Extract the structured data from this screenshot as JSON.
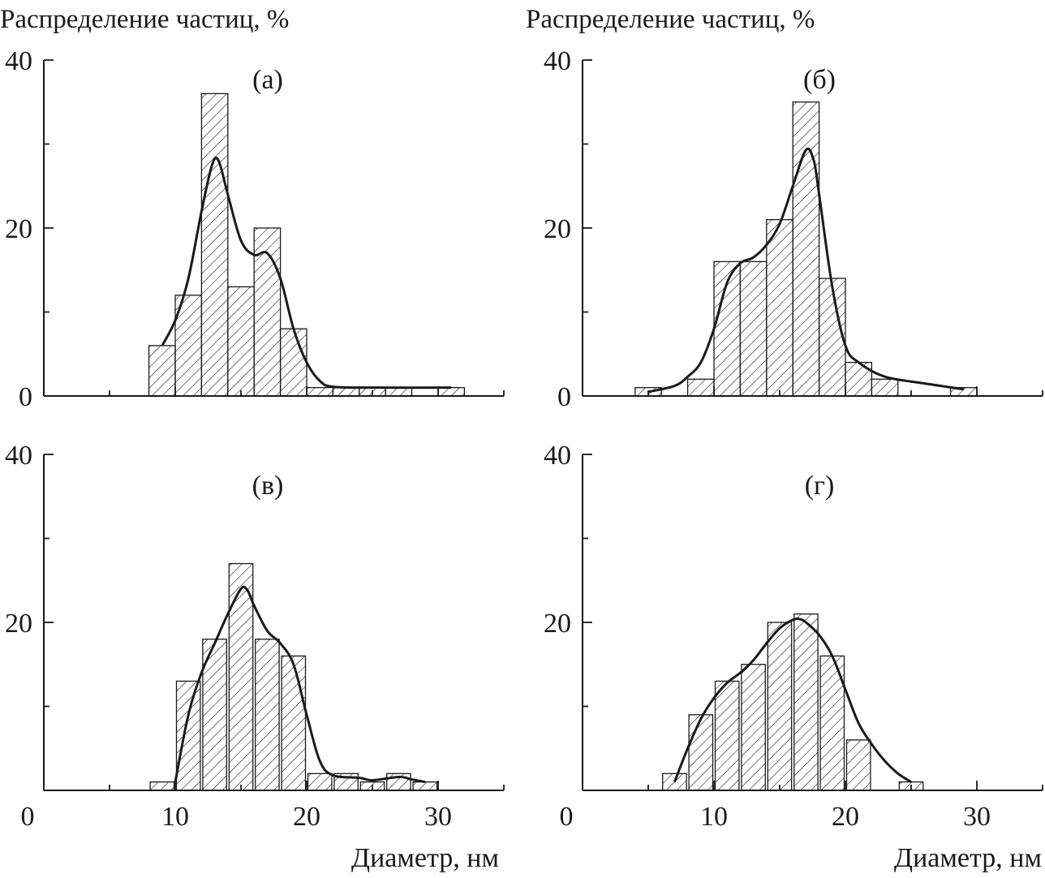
{
  "chart_data": [
    {
      "type": "bar",
      "panel_label": "(а)",
      "ylabel": "Распределение частиц, %",
      "xlabel": "",
      "xlim": [
        0,
        35
      ],
      "ylim": [
        0,
        40
      ],
      "y_ticks": [
        0,
        20,
        40
      ],
      "x_ticks": [],
      "bin_width": 2,
      "bars": {
        "x": [
          9,
          11,
          13,
          15,
          17,
          19,
          21,
          23,
          25,
          27,
          31
        ],
        "values": [
          6,
          12,
          36,
          13,
          20,
          8,
          1,
          1,
          1,
          1,
          1
        ]
      },
      "fit_curve": [
        [
          9,
          6
        ],
        [
          10,
          9
        ],
        [
          11,
          14
        ],
        [
          12,
          22
        ],
        [
          12.8,
          27.5
        ],
        [
          13.3,
          28
        ],
        [
          14,
          24
        ],
        [
          15,
          18.5
        ],
        [
          16,
          16.8
        ],
        [
          17,
          17
        ],
        [
          18,
          14
        ],
        [
          19,
          8
        ],
        [
          20,
          4
        ],
        [
          21,
          1.8
        ],
        [
          22,
          1.1
        ],
        [
          25,
          1
        ],
        [
          31,
          1
        ]
      ],
      "pattern": "diagonal-hatch"
    },
    {
      "type": "bar",
      "panel_label": "(б)",
      "ylabel": "Распределение частиц, %",
      "xlabel": "",
      "xlim": [
        0,
        35
      ],
      "ylim": [
        0,
        40
      ],
      "y_ticks": [
        0,
        20,
        40
      ],
      "x_ticks": [],
      "bin_width": 2,
      "bars": {
        "x": [
          5,
          9,
          11,
          13,
          15,
          17,
          19,
          21,
          23,
          29
        ],
        "values": [
          1,
          2,
          16,
          16,
          21,
          35,
          14,
          4,
          2,
          1
        ]
      },
      "fit_curve": [
        [
          5,
          0.5
        ],
        [
          7,
          1.2
        ],
        [
          8,
          2.3
        ],
        [
          9,
          4
        ],
        [
          10,
          8
        ],
        [
          11,
          13.5
        ],
        [
          12,
          15.8
        ],
        [
          13,
          16.5
        ],
        [
          14,
          18
        ],
        [
          15,
          20.5
        ],
        [
          16,
          25
        ],
        [
          17,
          29.3
        ],
        [
          17.6,
          28
        ],
        [
          18,
          24
        ],
        [
          19,
          13
        ],
        [
          20,
          6
        ],
        [
          21,
          4
        ],
        [
          23,
          2.3
        ],
        [
          26,
          1.5
        ],
        [
          29,
          0.8
        ]
      ],
      "pattern": "diagonal-hatch"
    },
    {
      "type": "bar",
      "panel_label": "(в)",
      "ylabel": "",
      "xlabel": "Диаметр, нм",
      "xlim": [
        0,
        35
      ],
      "ylim": [
        0,
        40
      ],
      "y_ticks": [
        0,
        20,
        40
      ],
      "x_ticks": [
        0,
        10,
        20,
        30
      ],
      "bin_width": 2,
      "bars": {
        "x": [
          9,
          11,
          13,
          15,
          17,
          19,
          21,
          23,
          25,
          27,
          29
        ],
        "values": [
          1,
          13,
          18,
          27,
          18,
          16,
          2,
          2,
          1,
          2,
          1
        ]
      },
      "fit_curve": [
        [
          10,
          1
        ],
        [
          11,
          9
        ],
        [
          12,
          14
        ],
        [
          13,
          17.5
        ],
        [
          14,
          21
        ],
        [
          15,
          24
        ],
        [
          15.5,
          23.8
        ],
        [
          16,
          22
        ],
        [
          17,
          19
        ],
        [
          18,
          17.5
        ],
        [
          19,
          15
        ],
        [
          20,
          9
        ],
        [
          21,
          3.5
        ],
        [
          22,
          1.8
        ],
        [
          24,
          1.5
        ],
        [
          25,
          1.2
        ],
        [
          27,
          1.6
        ],
        [
          28,
          1.3
        ],
        [
          29,
          1
        ]
      ],
      "pattern": "diagonal-hatch"
    },
    {
      "type": "bar",
      "panel_label": "(г)",
      "ylabel": "",
      "xlabel": "Диаметр, нм",
      "xlim": [
        0,
        35
      ],
      "ylim": [
        0,
        40
      ],
      "y_ticks": [
        0,
        20,
        40
      ],
      "x_ticks": [
        0,
        10,
        20,
        30
      ],
      "bin_width": 2,
      "bars": {
        "x": [
          7,
          9,
          11,
          13,
          15,
          17,
          19,
          21,
          25
        ],
        "values": [
          2,
          9,
          13,
          15,
          20,
          21,
          16,
          6,
          1
        ]
      },
      "fit_curve": [
        [
          7,
          1
        ],
        [
          8,
          5
        ],
        [
          9,
          8.5
        ],
        [
          10,
          11
        ],
        [
          11,
          12.8
        ],
        [
          12,
          14
        ],
        [
          13,
          15.5
        ],
        [
          14,
          17.5
        ],
        [
          15,
          19.3
        ],
        [
          16,
          20.3
        ],
        [
          16.5,
          20.4
        ],
        [
          17,
          20
        ],
        [
          18,
          18.5
        ],
        [
          19,
          16
        ],
        [
          20,
          12
        ],
        [
          21,
          8
        ],
        [
          22,
          5.5
        ],
        [
          23,
          3.5
        ],
        [
          24,
          2
        ],
        [
          25,
          1
        ]
      ],
      "pattern": "diagonal-hatch"
    }
  ],
  "colors": {
    "ink": "#1a1a1a",
    "background": "#ffffff"
  }
}
